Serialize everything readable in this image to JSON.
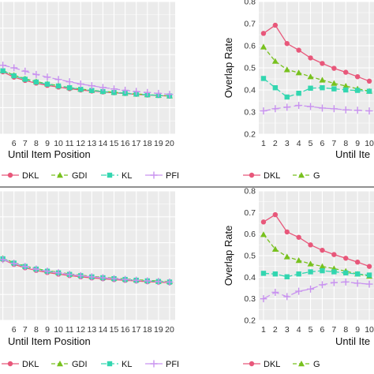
{
  "colors": {
    "DKL": "#e8577a",
    "GDI": "#78c11e",
    "KL": "#33d6b0",
    "PFI": "#c993f0",
    "panel": "#ebebeb",
    "grid": "#ffffff"
  },
  "chart_data": [
    {
      "type": "line",
      "panel": "top-left",
      "xlabel": "Until Item Position",
      "ylabel": "",
      "x_ticks": [
        5,
        6,
        7,
        8,
        9,
        10,
        11,
        12,
        13,
        14,
        15,
        16,
        17,
        18,
        19,
        20
      ],
      "x_tick_labels": [
        "",
        "6",
        "7",
        "8",
        "9",
        "10",
        "11",
        "12",
        "13",
        "14",
        "15",
        "16",
        "17",
        "18",
        "19",
        "20"
      ],
      "xlim": [
        4.6,
        20.5
      ],
      "ylim": [
        0,
        1
      ],
      "grid": true,
      "legend": "bottom",
      "series": [
        {
          "name": "DKL",
          "x": [
            5,
            6,
            7,
            8,
            9,
            10,
            11,
            12,
            13,
            14,
            15,
            16,
            17,
            18,
            19,
            20
          ],
          "y": [
            0.47,
            0.43,
            0.405,
            0.385,
            0.368,
            0.355,
            0.343,
            0.333,
            0.325,
            0.318,
            0.312,
            0.306,
            0.3,
            0.295,
            0.291,
            0.287
          ]
        },
        {
          "name": "GDI",
          "x": [
            5,
            6,
            7,
            8,
            9,
            10,
            11,
            12,
            13,
            14,
            15,
            16,
            17,
            18,
            19,
            20
          ],
          "y": [
            0.48,
            0.445,
            0.418,
            0.397,
            0.38,
            0.365,
            0.352,
            0.34,
            0.331,
            0.323,
            0.316,
            0.309,
            0.303,
            0.298,
            0.293,
            0.289
          ]
        },
        {
          "name": "KL",
          "x": [
            5,
            6,
            7,
            8,
            9,
            10,
            11,
            12,
            13,
            14,
            15,
            16,
            17,
            18,
            19,
            20
          ],
          "y": [
            0.478,
            0.44,
            0.414,
            0.393,
            0.377,
            0.363,
            0.35,
            0.338,
            0.329,
            0.321,
            0.314,
            0.308,
            0.302,
            0.297,
            0.292,
            0.288
          ]
        },
        {
          "name": "PFI",
          "x": [
            5,
            6,
            7,
            8,
            9,
            10,
            11,
            12,
            13,
            14,
            15,
            16,
            17,
            18,
            19,
            20
          ],
          "y": [
            0.52,
            0.5,
            0.475,
            0.45,
            0.43,
            0.412,
            0.395,
            0.378,
            0.365,
            0.352,
            0.341,
            0.331,
            0.322,
            0.314,
            0.307,
            0.3
          ]
        }
      ]
    },
    {
      "type": "line",
      "panel": "top-right",
      "xlabel": "Until Ite",
      "ylabel": "Overlap Rate",
      "x_ticks": [
        1,
        2,
        3,
        4,
        5,
        6,
        7,
        8,
        9,
        10
      ],
      "x_tick_labels": [
        "1",
        "2",
        "3",
        "4",
        "5",
        "6",
        "7",
        "8",
        "9",
        "10"
      ],
      "xlim": [
        0.6,
        10.4
      ],
      "ylim": [
        0.2,
        0.8
      ],
      "y_ticks": [
        0.2,
        0.3,
        0.4,
        0.5,
        0.6,
        0.7,
        0.8
      ],
      "y_tick_labels": [
        "0.2",
        "0.3",
        "0.4",
        "0.5",
        "0.6",
        "0.7",
        "0.8"
      ],
      "grid": true,
      "legend": "bottom",
      "series": [
        {
          "name": "DKL",
          "x": [
            1,
            2,
            3,
            4,
            5,
            6,
            7,
            8,
            9,
            10
          ],
          "y": [
            0.656,
            0.693,
            0.61,
            0.58,
            0.545,
            0.52,
            0.498,
            0.48,
            0.46,
            0.44
          ]
        },
        {
          "name": "GDI",
          "x": [
            1,
            2,
            3,
            4,
            5,
            6,
            7,
            8,
            9,
            10
          ],
          "y": [
            0.595,
            0.53,
            0.492,
            0.478,
            0.46,
            0.445,
            0.43,
            0.418,
            0.405,
            0.395
          ]
        },
        {
          "name": "KL",
          "x": [
            1,
            2,
            3,
            4,
            5,
            6,
            7,
            8,
            9,
            10
          ],
          "y": [
            0.452,
            0.41,
            0.368,
            0.385,
            0.408,
            0.41,
            0.405,
            0.4,
            0.398,
            0.394
          ]
        },
        {
          "name": "PFI",
          "x": [
            1,
            2,
            3,
            4,
            5,
            6,
            7,
            8,
            9,
            10
          ],
          "y": [
            0.305,
            0.315,
            0.322,
            0.33,
            0.325,
            0.318,
            0.315,
            0.31,
            0.308,
            0.305
          ]
        }
      ]
    },
    {
      "type": "line",
      "panel": "bottom-left",
      "xlabel": "Until Item Position",
      "ylabel": "",
      "x_ticks": [
        5,
        6,
        7,
        8,
        9,
        10,
        11,
        12,
        13,
        14,
        15,
        16,
        17,
        18,
        19,
        20
      ],
      "x_tick_labels": [
        "",
        "6",
        "7",
        "8",
        "9",
        "10",
        "11",
        "12",
        "13",
        "14",
        "15",
        "16",
        "17",
        "18",
        "19",
        "20"
      ],
      "xlim": [
        4.6,
        20.5
      ],
      "ylim": [
        0,
        1
      ],
      "grid": true,
      "legend": "bottom",
      "series": [
        {
          "name": "DKL",
          "x": [
            5,
            6,
            7,
            8,
            9,
            10,
            11,
            12,
            13,
            14,
            15,
            16,
            17,
            18,
            19,
            20
          ],
          "y": [
            0.47,
            0.432,
            0.406,
            0.386,
            0.37,
            0.357,
            0.346,
            0.336,
            0.328,
            0.321,
            0.315,
            0.309,
            0.304,
            0.299,
            0.295,
            0.291
          ]
        },
        {
          "name": "GDI",
          "x": [
            5,
            6,
            7,
            8,
            9,
            10,
            11,
            12,
            13,
            14,
            15,
            16,
            17,
            18,
            19,
            20
          ],
          "y": [
            0.48,
            0.446,
            0.42,
            0.4,
            0.384,
            0.371,
            0.359,
            0.349,
            0.34,
            0.333,
            0.326,
            0.32,
            0.314,
            0.309,
            0.304,
            0.3
          ]
        },
        {
          "name": "KL",
          "x": [
            5,
            6,
            7,
            8,
            9,
            10,
            11,
            12,
            13,
            14,
            15,
            16,
            17,
            18,
            19,
            20
          ],
          "y": [
            0.476,
            0.442,
            0.416,
            0.396,
            0.38,
            0.367,
            0.355,
            0.345,
            0.336,
            0.329,
            0.322,
            0.316,
            0.31,
            0.305,
            0.3,
            0.296
          ]
        },
        {
          "name": "PFI",
          "x": [
            5,
            6,
            7,
            8,
            9,
            10,
            11,
            12,
            13,
            14,
            15,
            16,
            17,
            18,
            19,
            20
          ],
          "y": [
            0.47,
            0.44,
            0.416,
            0.396,
            0.38,
            0.367,
            0.355,
            0.345,
            0.336,
            0.329,
            0.322,
            0.316,
            0.31,
            0.305,
            0.3,
            0.296
          ]
        }
      ]
    },
    {
      "type": "line",
      "panel": "bottom-right",
      "xlabel": "Until Ite",
      "ylabel": "Overlap Rate",
      "x_ticks": [
        1,
        2,
        3,
        4,
        5,
        6,
        7,
        8,
        9,
        10
      ],
      "x_tick_labels": [
        "1",
        "2",
        "3",
        "4",
        "5",
        "6",
        "7",
        "8",
        "9",
        "10"
      ],
      "xlim": [
        0.6,
        10.4
      ],
      "ylim": [
        0.2,
        0.8
      ],
      "y_ticks": [
        0.2,
        0.3,
        0.4,
        0.5,
        0.6,
        0.7,
        0.8
      ],
      "y_tick_labels": [
        "0.2",
        "0.3",
        "0.4",
        "0.5",
        "0.6",
        "0.7",
        "0.8"
      ],
      "grid": true,
      "legend": "bottom",
      "series": [
        {
          "name": "DKL",
          "x": [
            1,
            2,
            3,
            4,
            5,
            6,
            7,
            8,
            9,
            10
          ],
          "y": [
            0.656,
            0.69,
            0.61,
            0.585,
            0.55,
            0.525,
            0.505,
            0.488,
            0.47,
            0.45
          ]
        },
        {
          "name": "GDI",
          "x": [
            1,
            2,
            3,
            4,
            5,
            6,
            7,
            8,
            9,
            10
          ],
          "y": [
            0.598,
            0.53,
            0.495,
            0.478,
            0.462,
            0.45,
            0.44,
            0.428,
            0.415,
            0.405
          ]
        },
        {
          "name": "KL",
          "x": [
            1,
            2,
            3,
            4,
            5,
            6,
            7,
            8,
            9,
            10
          ],
          "y": [
            0.418,
            0.415,
            0.402,
            0.415,
            0.425,
            0.43,
            0.425,
            0.42,
            0.415,
            0.41
          ]
        },
        {
          "name": "PFI",
          "x": [
            1,
            2,
            3,
            4,
            5,
            6,
            7,
            8,
            9,
            10
          ],
          "y": [
            0.3,
            0.33,
            0.31,
            0.335,
            0.345,
            0.365,
            0.375,
            0.378,
            0.372,
            0.368
          ]
        }
      ]
    }
  ],
  "legends": [
    {
      "panel": "top-left",
      "items": [
        {
          "key": "DKL",
          "label": "DKL",
          "marker": "circle"
        },
        {
          "key": "GDI",
          "label": "GDI",
          "marker": "triangle"
        },
        {
          "key": "KL",
          "label": "KL",
          "marker": "square"
        },
        {
          "key": "PFI",
          "label": "PFI",
          "marker": "plus"
        }
      ]
    },
    {
      "panel": "top-right",
      "items": [
        {
          "key": "DKL",
          "label": "DKL",
          "marker": "circle"
        },
        {
          "key": "GDI",
          "label": "G",
          "marker": "triangle"
        }
      ]
    },
    {
      "panel": "bottom-left",
      "items": [
        {
          "key": "DKL",
          "label": "DKL",
          "marker": "circle"
        },
        {
          "key": "GDI",
          "label": "GDI",
          "marker": "triangle"
        },
        {
          "key": "KL",
          "label": "KL",
          "marker": "square"
        },
        {
          "key": "PFI",
          "label": "PFI",
          "marker": "plus"
        }
      ]
    },
    {
      "panel": "bottom-right",
      "items": [
        {
          "key": "DKL",
          "label": "DKL",
          "marker": "circle"
        },
        {
          "key": "GDI",
          "label": "G",
          "marker": "triangle"
        }
      ]
    }
  ]
}
